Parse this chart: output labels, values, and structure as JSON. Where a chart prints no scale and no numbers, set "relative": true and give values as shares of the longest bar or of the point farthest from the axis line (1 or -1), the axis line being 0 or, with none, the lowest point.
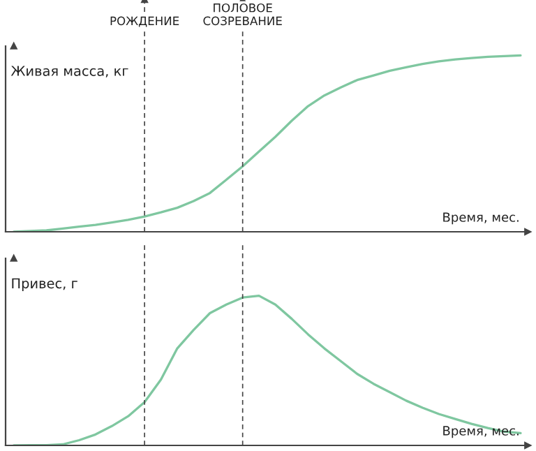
{
  "chart_data": [
    {
      "type": "line",
      "ylabel": "Живая масса, кг",
      "xlabel": "Время, мес.",
      "relative": true,
      "line_style": "solid",
      "categories": [
        null,
        null,
        null,
        null,
        null,
        null,
        null,
        null,
        null,
        null,
        null,
        null,
        null,
        null,
        null,
        null,
        null,
        null,
        null,
        null,
        null,
        null,
        null,
        null,
        null,
        null,
        null,
        null,
        null,
        null,
        null,
        null
      ],
      "series": [
        {
          "color": "#7fc7a0",
          "values": [
            0,
            0.004,
            0.008,
            0.018,
            0.029,
            0.039,
            0.053,
            0.068,
            0.087,
            0.11,
            0.136,
            0.174,
            0.22,
            0.295,
            0.371,
            0.455,
            0.538,
            0.629,
            0.712,
            0.773,
            0.818,
            0.86,
            0.886,
            0.913,
            0.932,
            0.951,
            0.966,
            0.977,
            0.985,
            0.992,
            0.996,
            1.0
          ]
        }
      ],
      "annotations": [
        "РОЖДЕНИЕ",
        "ПОЛОВОЕ\nСОЗРЕВАНИЕ"
      ]
    },
    {
      "type": "line",
      "ylabel": "Привес, г",
      "xlabel": "Время, мес.",
      "relative": true,
      "line_style": "solid",
      "categories": [
        null,
        null,
        null,
        null,
        null,
        null,
        null,
        null,
        null,
        null,
        null,
        null,
        null,
        null,
        null,
        null,
        null,
        null,
        null,
        null,
        null,
        null,
        null,
        null,
        null,
        null,
        null,
        null,
        null,
        null,
        null,
        null
      ],
      "series": [
        {
          "color": "#7fc7a0",
          "values": [
            0,
            0.001,
            0.002,
            0.007,
            0.035,
            0.073,
            0.129,
            0.195,
            0.289,
            0.44,
            0.648,
            0.771,
            0.884,
            0.941,
            0.988,
            1.0,
            0.941,
            0.846,
            0.742,
            0.648,
            0.563,
            0.478,
            0.412,
            0.356,
            0.299,
            0.252,
            0.21,
            0.177,
            0.144,
            0.116,
            0.092,
            0.082
          ]
        }
      ]
    }
  ]
}
